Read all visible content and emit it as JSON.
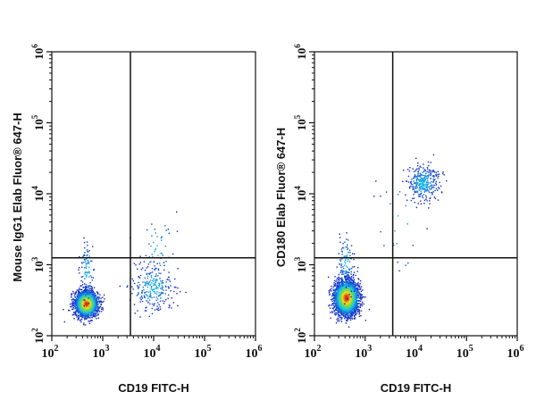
{
  "colors": {
    "axis": "#111111",
    "gate": "#111111",
    "density_low": "#1020c8",
    "density_mid": "#16c8e8",
    "density_mid2": "#7ad840",
    "density_high": "#f0e020",
    "density_peak": "#e02010"
  },
  "chart_data": [
    {
      "type": "scatter",
      "subtype": "flow-cytometry-density-dot-plot",
      "xlabel": "CD19 FITC-H",
      "ylabel": "Mouse IgG1 Elab Fluor® 647-H",
      "x_scale": "log",
      "y_scale": "log",
      "xlim": [
        100,
        1000000
      ],
      "ylim": [
        100,
        1000000
      ],
      "x_ticks": [
        {
          "base": "10",
          "exp": "2"
        },
        {
          "base": "10",
          "exp": "3"
        },
        {
          "base": "10",
          "exp": "4"
        },
        {
          "base": "10",
          "exp": "5"
        },
        {
          "base": "10",
          "exp": "6"
        }
      ],
      "y_ticks": [
        {
          "base": "10",
          "exp": "2"
        },
        {
          "base": "10",
          "exp": "3"
        },
        {
          "base": "10",
          "exp": "4"
        },
        {
          "base": "10",
          "exp": "5"
        },
        {
          "base": "10",
          "exp": "6"
        }
      ],
      "gate": {
        "x": 3500,
        "y": 1250
      },
      "populations": [
        {
          "label": "negative-dense",
          "center_x": 480,
          "center_y": 280,
          "spread_x_decades": 0.11,
          "spread_y_decades": 0.09,
          "events": 2200
        },
        {
          "label": "negative-tail-up",
          "center_x": 500,
          "center_y": 800,
          "spread_x_decades": 0.07,
          "spread_y_decades": 0.22,
          "events": 90
        },
        {
          "label": "cd19-positive",
          "center_x": 10000,
          "center_y": 480,
          "spread_x_decades": 0.2,
          "spread_y_decades": 0.17,
          "events": 260
        },
        {
          "label": "cd19-positive-upper",
          "center_x": 12000,
          "center_y": 1700,
          "spread_x_decades": 0.17,
          "spread_y_decades": 0.25,
          "events": 50
        }
      ]
    },
    {
      "type": "scatter",
      "subtype": "flow-cytometry-density-dot-plot",
      "xlabel": "CD19 FITC-H",
      "ylabel": "CD180 Elab Fluor® 647-H",
      "x_scale": "log",
      "y_scale": "log",
      "xlim": [
        100,
        1000000
      ],
      "ylim": [
        100,
        1000000
      ],
      "x_ticks": [
        {
          "base": "10",
          "exp": "2"
        },
        {
          "base": "10",
          "exp": "3"
        },
        {
          "base": "10",
          "exp": "4"
        },
        {
          "base": "10",
          "exp": "5"
        },
        {
          "base": "10",
          "exp": "6"
        }
      ],
      "y_ticks": [
        {
          "base": "10",
          "exp": "2"
        },
        {
          "base": "10",
          "exp": "3"
        },
        {
          "base": "10",
          "exp": "4"
        },
        {
          "base": "10",
          "exp": "5"
        },
        {
          "base": "10",
          "exp": "6"
        }
      ],
      "gate": {
        "x": 3500,
        "y": 1250
      },
      "populations": [
        {
          "label": "negative-dense",
          "center_x": 430,
          "center_y": 340,
          "spread_x_decades": 0.12,
          "spread_y_decades": 0.12,
          "events": 2600
        },
        {
          "label": "negative-tail-up",
          "center_x": 420,
          "center_y": 1100,
          "spread_x_decades": 0.08,
          "spread_y_decades": 0.2,
          "events": 110
        },
        {
          "label": "cd180-cd19-double-positive",
          "center_x": 14000,
          "center_y": 14000,
          "spread_x_decades": 0.16,
          "spread_y_decades": 0.13,
          "events": 330
        },
        {
          "label": "scatter-between",
          "center_x": 4500,
          "center_y": 4000,
          "spread_x_decades": 0.25,
          "spread_y_decades": 0.35,
          "events": 25
        }
      ]
    }
  ]
}
